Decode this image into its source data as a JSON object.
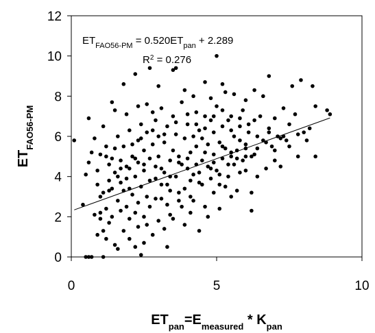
{
  "chart_data": {
    "type": "scatter",
    "title": "",
    "xlabel": {
      "base": "ET",
      "sub1": "pan",
      "eq": "=E",
      "sub2": "measured",
      "mid": " * K",
      "sub3": "pan"
    },
    "ylabel": {
      "base": "ET",
      "sub": "FAO56-PM"
    },
    "xlim": [
      0,
      10
    ],
    "ylim": [
      0,
      12
    ],
    "xticks": [
      "0",
      "5",
      "10"
    ],
    "yticks": [
      "0",
      "2",
      "4",
      "6",
      "8",
      "10",
      "12"
    ],
    "grid": false,
    "legend": "none",
    "trendline": {
      "slope": 0.52,
      "intercept": 2.289,
      "x_range": [
        0.1,
        8.9
      ],
      "equation": {
        "pre": "ET",
        "sub": "FAO56-PM",
        "post": " = 0.520ET",
        "sub2": "pan",
        "tail": " + 2.289"
      },
      "r2": {
        "pre": "R",
        "sup": "2",
        "post": " = 0.276"
      }
    },
    "marker_color": "#000000",
    "points": [
      [
        0.1,
        5.8
      ],
      [
        0.4,
        2.6
      ],
      [
        0.5,
        0.0
      ],
      [
        0.6,
        0.0
      ],
      [
        0.7,
        0.0
      ],
      [
        1.1,
        0.0
      ],
      [
        0.5,
        4.1
      ],
      [
        0.6,
        4.7
      ],
      [
        0.7,
        5.2
      ],
      [
        0.8,
        2.1
      ],
      [
        0.9,
        3.6
      ],
      [
        1.0,
        1.9
      ],
      [
        1.0,
        3.0
      ],
      [
        1.1,
        1.3
      ],
      [
        1.1,
        3.2
      ],
      [
        1.2,
        5.0
      ],
      [
        1.2,
        2.4
      ],
      [
        1.3,
        3.8
      ],
      [
        1.3,
        4.6
      ],
      [
        1.4,
        3.4
      ],
      [
        1.4,
        2.0
      ],
      [
        1.5,
        5.4
      ],
      [
        1.5,
        4.2
      ],
      [
        1.6,
        2.8
      ],
      [
        1.6,
        6.0
      ],
      [
        1.7,
        3.7
      ],
      [
        1.7,
        4.8
      ],
      [
        1.8,
        3.3
      ],
      [
        1.8,
        5.5
      ],
      [
        1.9,
        3.9
      ],
      [
        1.9,
        2.5
      ],
      [
        2.0,
        4.4
      ],
      [
        2.0,
        6.3
      ],
      [
        2.1,
        3.1
      ],
      [
        2.1,
        5.0
      ],
      [
        2.2,
        4.0
      ],
      [
        2.2,
        2.2
      ],
      [
        2.3,
        5.8
      ],
      [
        2.3,
        4.7
      ],
      [
        2.4,
        3.5
      ],
      [
        2.4,
        6.6
      ],
      [
        2.5,
        2.0
      ],
      [
        2.5,
        4.3
      ],
      [
        2.5,
        5.3
      ],
      [
        2.6,
        3.0
      ],
      [
        2.6,
        6.2
      ],
      [
        2.7,
        4.9
      ],
      [
        2.7,
        3.8
      ],
      [
        2.8,
        5.6
      ],
      [
        2.8,
        7.2
      ],
      [
        2.9,
        4.5
      ],
      [
        2.9,
        2.9
      ],
      [
        3.0,
        6.0
      ],
      [
        3.0,
        5.0
      ],
      [
        3.1,
        3.6
      ],
      [
        3.1,
        7.4
      ],
      [
        3.2,
        4.2
      ],
      [
        3.2,
        5.7
      ],
      [
        3.3,
        2.6
      ],
      [
        3.3,
        6.5
      ],
      [
        3.4,
        4.8
      ],
      [
        3.4,
        3.3
      ],
      [
        3.5,
        5.3
      ],
      [
        3.5,
        7.0
      ],
      [
        3.6,
        4.0
      ],
      [
        3.6,
        6.1
      ],
      [
        3.7,
        2.8
      ],
      [
        3.7,
        5.0
      ],
      [
        3.8,
        4.6
      ],
      [
        3.8,
        7.7
      ],
      [
        3.9,
        3.4
      ],
      [
        3.9,
        5.9
      ],
      [
        4.0,
        4.4
      ],
      [
        4.0,
        6.6
      ],
      [
        4.1,
        5.2
      ],
      [
        4.1,
        3.0
      ],
      [
        4.2,
        6.0
      ],
      [
        4.2,
        4.1
      ],
      [
        4.3,
        7.2
      ],
      [
        4.3,
        5.5
      ],
      [
        4.4,
        3.7
      ],
      [
        4.4,
        6.3
      ],
      [
        4.5,
        4.8
      ],
      [
        4.5,
        5.9
      ],
      [
        4.6,
        2.5
      ],
      [
        4.6,
        7.0
      ],
      [
        4.7,
        4.5
      ],
      [
        4.7,
        5.6
      ],
      [
        4.8,
        6.8
      ],
      [
        4.8,
        3.9
      ],
      [
        4.9,
        5.1
      ],
      [
        4.9,
        6.2
      ],
      [
        5.0,
        4.3
      ],
      [
        5.0,
        7.5
      ],
      [
        5.1,
        5.7
      ],
      [
        5.1,
        3.6
      ],
      [
        5.2,
        6.5
      ],
      [
        5.2,
        4.9
      ],
      [
        5.3,
        8.2
      ],
      [
        5.3,
        5.4
      ],
      [
        5.4,
        4.0
      ],
      [
        5.4,
        6.8
      ],
      [
        5.5,
        5.0
      ],
      [
        5.5,
        7.0
      ],
      [
        5.6,
        4.6
      ],
      [
        5.6,
        6.0
      ],
      [
        5.7,
        3.3
      ],
      [
        5.7,
        5.3
      ],
      [
        5.8,
        6.5
      ],
      [
        5.9,
        4.8
      ],
      [
        5.9,
        7.3
      ],
      [
        6.0,
        5.6
      ],
      [
        6.0,
        4.3
      ],
      [
        6.1,
        6.2
      ],
      [
        6.2,
        5.0
      ],
      [
        6.2,
        3.2
      ],
      [
        6.3,
        6.8
      ],
      [
        6.4,
        5.4
      ],
      [
        6.4,
        4.0
      ],
      [
        6.5,
        7.0
      ],
      [
        6.6,
        5.8
      ],
      [
        6.7,
        4.4
      ],
      [
        6.8,
        9.0
      ],
      [
        6.8,
        6.4
      ],
      [
        6.9,
        5.5
      ],
      [
        7.0,
        4.8
      ],
      [
        7.1,
        6.0
      ],
      [
        7.2,
        4.5
      ],
      [
        7.3,
        7.4
      ],
      [
        7.4,
        5.8
      ],
      [
        7.5,
        6.6
      ],
      [
        7.6,
        8.5
      ],
      [
        7.8,
        5.0
      ],
      [
        8.0,
        6.2
      ],
      [
        8.2,
        6.4
      ],
      [
        8.3,
        8.5
      ],
      [
        8.4,
        5.0
      ],
      [
        8.4,
        7.5
      ],
      [
        8.8,
        7.3
      ],
      [
        8.9,
        7.1
      ],
      [
        7.9,
        8.8
      ],
      [
        6.2,
        2.3
      ],
      [
        5.0,
        10.0
      ],
      [
        3.6,
        9.4
      ],
      [
        2.2,
        9.1
      ],
      [
        2.7,
        9.4
      ],
      [
        3.5,
        9.3
      ],
      [
        4.6,
        8.7
      ],
      [
        1.8,
        8.6
      ],
      [
        2.6,
        7.6
      ],
      [
        1.4,
        7.7
      ],
      [
        1.0,
        2.2
      ],
      [
        0.9,
        1.1
      ],
      [
        1.2,
        0.9
      ],
      [
        1.3,
        1.7
      ],
      [
        1.5,
        0.6
      ],
      [
        1.8,
        1.3
      ],
      [
        2.0,
        0.9
      ],
      [
        2.3,
        1.5
      ],
      [
        2.5,
        0.7
      ],
      [
        2.6,
        1.6
      ],
      [
        2.8,
        1.1
      ],
      [
        3.0,
        1.8
      ],
      [
        2.2,
        0.5
      ],
      [
        2.4,
        0.1
      ],
      [
        3.2,
        1.4
      ],
      [
        3.5,
        1.9
      ],
      [
        3.9,
        1.6
      ],
      [
        4.1,
        2.2
      ],
      [
        4.4,
        1.3
      ],
      [
        4.7,
        2.0
      ],
      [
        5.1,
        2.4
      ],
      [
        2.0,
        1.9
      ],
      [
        1.7,
        2.3
      ],
      [
        1.6,
        0.4
      ],
      [
        3.3,
        0.5
      ],
      [
        4.2,
        8.0
      ],
      [
        3.9,
        8.3
      ],
      [
        3.0,
        8.5
      ],
      [
        5.6,
        8.1
      ],
      [
        6.0,
        7.8
      ],
      [
        5.2,
        8.6
      ],
      [
        4.8,
        7.9
      ],
      [
        2.9,
        6.8
      ],
      [
        1.9,
        7.1
      ],
      [
        1.1,
        6.5
      ],
      [
        0.8,
        5.9
      ],
      [
        0.6,
        6.9
      ],
      [
        1.5,
        7.3
      ],
      [
        2.3,
        7.5
      ],
      [
        7.0,
        6.9
      ],
      [
        7.7,
        7.1
      ],
      [
        6.6,
        8.0
      ],
      [
        6.3,
        8.3
      ],
      [
        6.8,
        6.2
      ],
      [
        7.3,
        6.0
      ],
      [
        6.0,
        5.0
      ],
      [
        5.8,
        4.2
      ],
      [
        5.5,
        3.0
      ],
      [
        5.3,
        3.5
      ],
      [
        4.9,
        3.2
      ],
      [
        4.5,
        3.6
      ],
      [
        4.2,
        2.8
      ],
      [
        3.8,
        2.5
      ],
      [
        3.4,
        2.1
      ],
      [
        3.1,
        2.9
      ],
      [
        2.7,
        2.5
      ],
      [
        2.3,
        2.7
      ],
      [
        2.0,
        3.4
      ],
      [
        1.7,
        4.4
      ],
      [
        1.4,
        4.9
      ],
      [
        1.2,
        5.5
      ],
      [
        0.9,
        4.3
      ],
      [
        1.0,
        5.1
      ],
      [
        2.1,
        5.6
      ],
      [
        2.4,
        5.9
      ],
      [
        2.8,
        6.3
      ],
      [
        3.2,
        6.1
      ],
      [
        3.6,
        6.7
      ],
      [
        4.0,
        7.1
      ],
      [
        4.3,
        6.6
      ],
      [
        4.6,
        6.4
      ],
      [
        4.9,
        7.0
      ],
      [
        5.2,
        7.3
      ],
      [
        5.5,
        6.3
      ],
      [
        5.8,
        6.9
      ],
      [
        6.1,
        6.6
      ],
      [
        6.4,
        6.0
      ],
      [
        6.7,
        5.7
      ],
      [
        7.0,
        5.3
      ],
      [
        7.2,
        5.9
      ],
      [
        7.5,
        5.5
      ],
      [
        7.8,
        6.1
      ],
      [
        8.1,
        5.8
      ],
      [
        3.1,
        4.4
      ],
      [
        3.4,
        4.0
      ],
      [
        3.7,
        4.7
      ],
      [
        4.0,
        4.9
      ],
      [
        4.3,
        4.6
      ],
      [
        4.6,
        5.2
      ],
      [
        4.9,
        4.7
      ],
      [
        5.2,
        5.5
      ],
      [
        5.5,
        5.2
      ],
      [
        5.8,
        5.8
      ],
      [
        2.5,
        4.6
      ],
      [
        2.2,
        4.9
      ],
      [
        1.9,
        4.5
      ],
      [
        1.6,
        4.0
      ],
      [
        1.3,
        3.3
      ],
      [
        2.9,
        3.9
      ],
      [
        3.3,
        3.6
      ],
      [
        3.7,
        3.2
      ],
      [
        4.1,
        3.8
      ],
      [
        4.4,
        4.2
      ],
      [
        4.8,
        4.4
      ],
      [
        5.1,
        4.1
      ],
      [
        5.4,
        4.6
      ],
      [
        5.7,
        4.9
      ],
      [
        6.0,
        5.4
      ],
      [
        6.3,
        5.1
      ]
    ]
  }
}
